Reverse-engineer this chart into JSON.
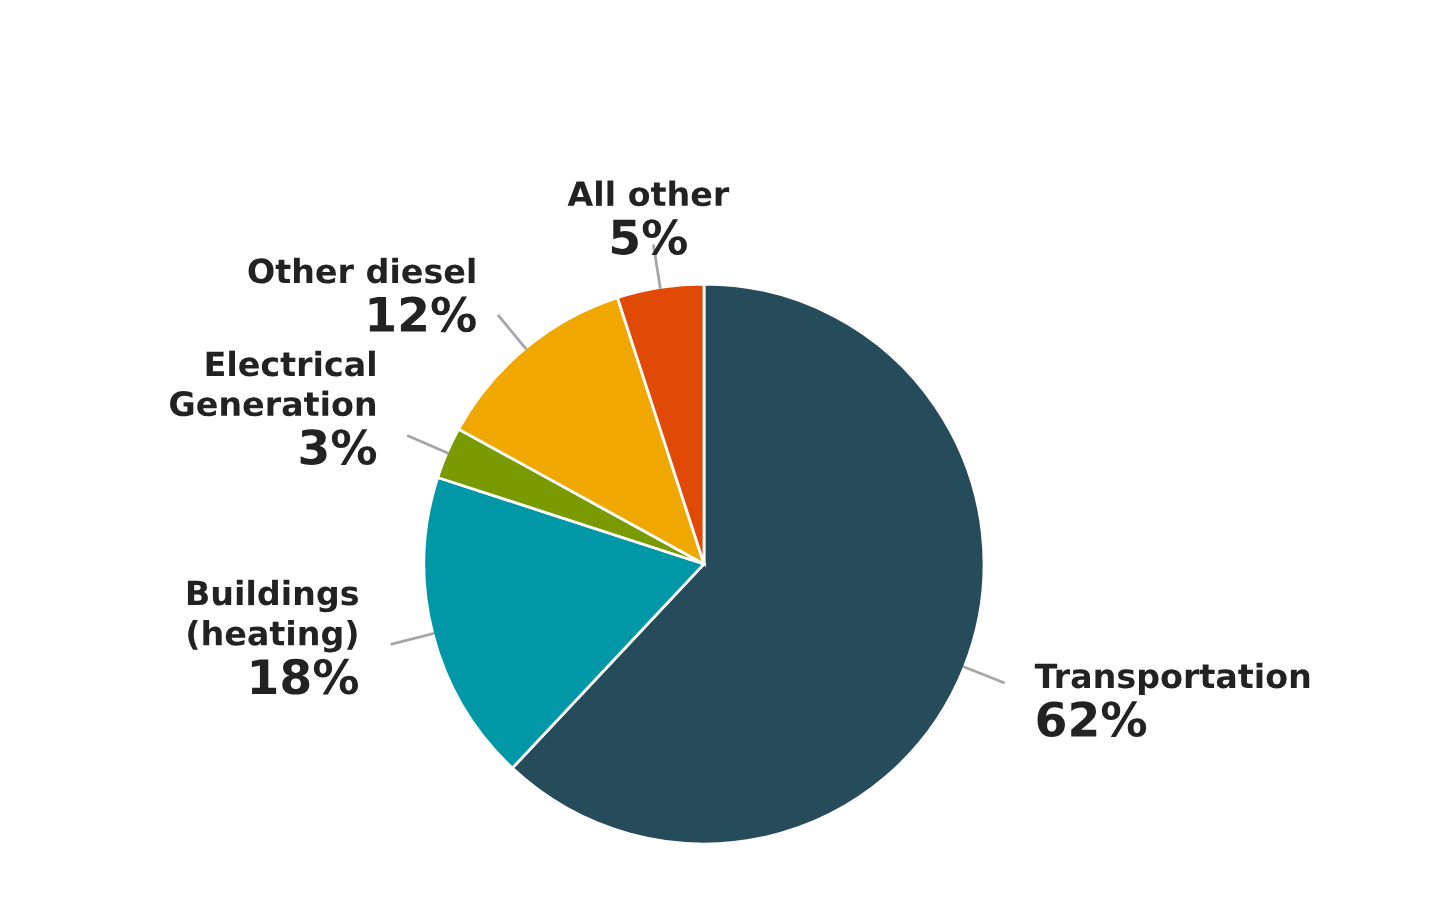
{
  "chart_data": {
    "type": "pie",
    "categories": [
      "Transportation",
      "Buildings\n(heating)",
      "Electrical\nGeneration",
      "Other diesel",
      "All other"
    ],
    "values": [
      62,
      18,
      3,
      12,
      5
    ],
    "value_labels": [
      "62%",
      "18%",
      "3%",
      "12%",
      "5%"
    ],
    "colors": [
      "#264c5b",
      "#0097a7",
      "#7a9a01",
      "#f0a800",
      "#e04a06"
    ]
  }
}
